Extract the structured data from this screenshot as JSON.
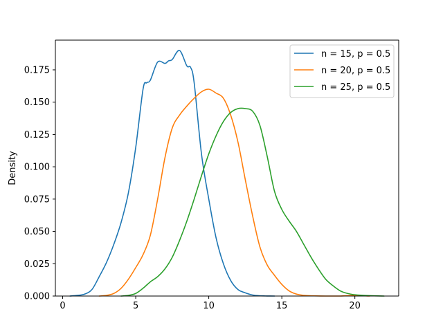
{
  "chart_data": {
    "type": "line",
    "title": "",
    "xlabel": "",
    "ylabel": "Density",
    "xlim": [
      -0.5,
      23
    ],
    "ylim": [
      0,
      0.198
    ],
    "xticks": [
      0,
      5,
      10,
      15,
      20
    ],
    "xtick_labels": [
      "0",
      "5",
      "10",
      "15",
      "20"
    ],
    "yticks": [
      0,
      0.025,
      0.05,
      0.075,
      0.1,
      0.125,
      0.15,
      0.175
    ],
    "ytick_labels": [
      "0.000",
      "0.025",
      "0.050",
      "0.075",
      "0.100",
      "0.125",
      "0.150",
      "0.175"
    ],
    "grid": false,
    "legend_position": "upper right",
    "series": [
      {
        "name": "n = 15, p = 0.5",
        "color": "#1f77b4",
        "x": [
          0.5,
          1,
          1.5,
          2,
          2.5,
          3,
          3.5,
          4,
          4.5,
          5,
          5.5,
          5.75,
          6,
          6.5,
          7,
          7.25,
          7.5,
          8,
          8.5,
          8.75,
          9,
          9.5,
          10,
          10.5,
          11,
          11.5,
          12,
          12.5,
          13,
          13.5,
          14,
          14.5
        ],
        "y": [
          0.0,
          0.0005,
          0.0015,
          0.005,
          0.015,
          0.026,
          0.04,
          0.057,
          0.08,
          0.115,
          0.16,
          0.165,
          0.167,
          0.181,
          0.18,
          0.182,
          0.183,
          0.19,
          0.178,
          0.177,
          0.165,
          0.11,
          0.075,
          0.045,
          0.025,
          0.012,
          0.005,
          0.0025,
          0.0008,
          0.0002,
          5e-05,
          0.0
        ]
      },
      {
        "name": "n = 20, p = 0.5",
        "color": "#ff7f0e",
        "x": [
          2.5,
          3,
          3.5,
          4,
          4.5,
          5,
          5.5,
          6,
          6.5,
          7,
          7.5,
          8,
          8.5,
          9,
          9.5,
          10,
          10.5,
          11,
          11.5,
          12,
          12.5,
          13,
          13.5,
          14,
          14.5,
          15,
          15.5,
          16,
          16.5,
          17,
          18,
          19,
          20,
          21
        ],
        "y": [
          0.0,
          0.0005,
          0.002,
          0.006,
          0.013,
          0.022,
          0.032,
          0.047,
          0.075,
          0.107,
          0.13,
          0.14,
          0.147,
          0.153,
          0.158,
          0.16,
          0.157,
          0.153,
          0.14,
          0.119,
          0.09,
          0.062,
          0.038,
          0.024,
          0.016,
          0.009,
          0.004,
          0.0015,
          0.0005,
          0.0002,
          0.0,
          0.0,
          0.0005,
          0.0
        ]
      },
      {
        "name": "n = 25, p = 0.5",
        "color": "#2ca02c",
        "x": [
          4,
          4.5,
          5,
          5.5,
          6,
          6.5,
          7,
          7.5,
          8,
          8.5,
          9,
          9.5,
          10,
          10.5,
          11,
          11.5,
          12,
          12.5,
          13,
          13.5,
          14,
          14.5,
          15,
          15.5,
          16,
          16.5,
          17,
          17.5,
          18,
          18.5,
          19,
          19.5,
          20,
          21,
          22
        ],
        "y": [
          0.0,
          0.0005,
          0.002,
          0.006,
          0.011,
          0.015,
          0.021,
          0.03,
          0.043,
          0.058,
          0.075,
          0.093,
          0.11,
          0.124,
          0.135,
          0.142,
          0.145,
          0.145,
          0.143,
          0.132,
          0.108,
          0.081,
          0.067,
          0.058,
          0.05,
          0.04,
          0.03,
          0.021,
          0.013,
          0.008,
          0.004,
          0.002,
          0.001,
          0.0003,
          0.0
        ]
      }
    ]
  }
}
